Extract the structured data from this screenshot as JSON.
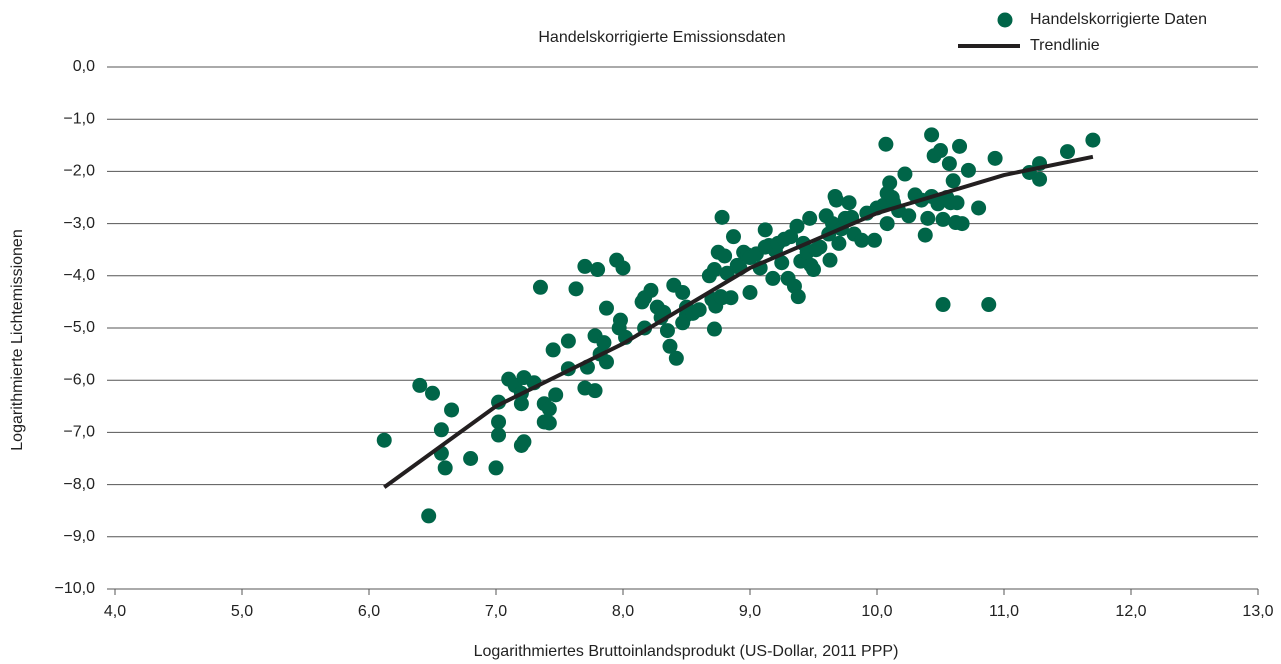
{
  "chart_data": {
    "type": "scatter",
    "title": "Handelskorrigierte Emissionsdaten",
    "xlabel": "Logarithmiertes Bruttoinlandsprodukt (US-Dollar, 2011 PPP)",
    "ylabel": "Logarithmierte Lichtemissionen",
    "xlim": [
      4,
      13
    ],
    "ylim": [
      -10,
      0
    ],
    "xticks": [
      {
        "value": 4,
        "label": "4,0"
      },
      {
        "value": 5,
        "label": "5,0"
      },
      {
        "value": 6,
        "label": "6,0"
      },
      {
        "value": 7,
        "label": "7,0"
      },
      {
        "value": 8,
        "label": "8,0"
      },
      {
        "value": 9,
        "label": "9,0"
      },
      {
        "value": 10,
        "label": "10,0"
      },
      {
        "value": 11,
        "label": "11,0"
      },
      {
        "value": 12,
        "label": "12,0"
      },
      {
        "value": 13,
        "label": "13,0"
      }
    ],
    "yticks": [
      {
        "value": 0,
        "label": "0,0"
      },
      {
        "value": -1,
        "label": "−1,0"
      },
      {
        "value": -2,
        "label": "−2,0"
      },
      {
        "value": -3,
        "label": "−3,0"
      },
      {
        "value": -4,
        "label": "−4,0"
      },
      {
        "value": -5,
        "label": "−5,0"
      },
      {
        "value": -6,
        "label": "−6,0"
      },
      {
        "value": -7,
        "label": "−7,0"
      },
      {
        "value": -8,
        "label": "−8,0"
      },
      {
        "value": -9,
        "label": "−9,0"
      },
      {
        "value": -10,
        "label": "−10,0"
      }
    ],
    "grid": "y",
    "legend": "upper right",
    "series": [
      {
        "name": "Handelskorrigierte Daten",
        "type": "scatter",
        "color": "#006548",
        "x": [
          6.12,
          6.4,
          6.5,
          6.47,
          6.57,
          6.57,
          6.6,
          6.65,
          6.8,
          7.0,
          7.02,
          7.02,
          7.02,
          7.1,
          7.15,
          7.2,
          7.2,
          7.2,
          7.22,
          7.22,
          7.3,
          7.35,
          7.38,
          7.38,
          7.42,
          7.42,
          7.45,
          7.47,
          7.57,
          7.57,
          7.63,
          7.7,
          7.7,
          7.72,
          7.78,
          7.78,
          7.8,
          7.82,
          7.85,
          7.87,
          7.87,
          7.95,
          7.97,
          7.98,
          8.0,
          8.02,
          8.15,
          8.17,
          8.17,
          8.22,
          8.27,
          8.3,
          8.32,
          8.35,
          8.37,
          8.4,
          8.42,
          8.47,
          8.47,
          8.5,
          8.5,
          8.55,
          8.6,
          8.68,
          8.7,
          8.72,
          8.72,
          8.73,
          8.75,
          8.77,
          8.78,
          8.78,
          8.8,
          8.82,
          8.85,
          8.87,
          8.9,
          8.92,
          8.95,
          8.98,
          9.0,
          9.0,
          9.05,
          9.08,
          9.12,
          9.12,
          9.15,
          9.18,
          9.2,
          9.22,
          9.25,
          9.27,
          9.3,
          9.32,
          9.35,
          9.37,
          9.38,
          9.4,
          9.42,
          9.45,
          9.47,
          9.48,
          9.5,
          9.52,
          9.55,
          9.6,
          9.62,
          9.63,
          9.65,
          9.67,
          9.68,
          9.7,
          9.72,
          9.75,
          9.78,
          9.8,
          9.82,
          9.88,
          9.92,
          9.98,
          10.0,
          10.05,
          10.07,
          10.08,
          10.08,
          10.1,
          10.12,
          10.13,
          10.17,
          10.22,
          10.25,
          10.3,
          10.35,
          10.38,
          10.4,
          10.43,
          10.43,
          10.45,
          10.48,
          10.5,
          10.52,
          10.52,
          10.55,
          10.57,
          10.58,
          10.6,
          10.62,
          10.63,
          10.65,
          10.67,
          10.72,
          10.8,
          10.88,
          10.93,
          11.2,
          11.28,
          11.28,
          11.5,
          11.7
        ],
        "values": [
          -7.15,
          -6.1,
          -6.25,
          -8.6,
          -6.95,
          -7.4,
          -7.68,
          -6.57,
          -7.5,
          -7.68,
          -6.8,
          -7.05,
          -6.42,
          -5.98,
          -6.1,
          -6.45,
          -6.25,
          -7.25,
          -7.18,
          -5.95,
          -6.05,
          -4.22,
          -6.45,
          -6.8,
          -6.82,
          -6.55,
          -5.42,
          -6.28,
          -5.25,
          -5.78,
          -4.25,
          -6.15,
          -3.82,
          -5.75,
          -6.2,
          -5.15,
          -3.88,
          -5.5,
          -5.28,
          -4.62,
          -5.65,
          -3.7,
          -5.0,
          -4.85,
          -3.85,
          -5.18,
          -4.5,
          -4.42,
          -5.0,
          -4.28,
          -4.6,
          -4.8,
          -4.7,
          -5.05,
          -5.35,
          -4.18,
          -5.58,
          -4.9,
          -4.32,
          -4.75,
          -4.6,
          -4.72,
          -4.65,
          -4.0,
          -4.45,
          -3.88,
          -5.02,
          -4.58,
          -3.55,
          -4.4,
          -2.88,
          -4.42,
          -3.62,
          -3.95,
          -4.42,
          -3.25,
          -3.8,
          -3.85,
          -3.55,
          -3.6,
          -4.32,
          -3.65,
          -3.58,
          -3.85,
          -3.12,
          -3.45,
          -3.42,
          -4.05,
          -3.52,
          -3.38,
          -3.75,
          -3.3,
          -4.05,
          -3.25,
          -4.2,
          -3.05,
          -4.4,
          -3.72,
          -3.38,
          -3.55,
          -2.9,
          -3.8,
          -3.88,
          -3.5,
          -3.45,
          -2.85,
          -3.2,
          -3.7,
          -3.0,
          -2.48,
          -2.55,
          -3.38,
          -3.1,
          -2.9,
          -2.6,
          -2.88,
          -3.2,
          -3.32,
          -2.8,
          -3.32,
          -2.7,
          -2.65,
          -1.48,
          -2.42,
          -3.0,
          -2.22,
          -2.5,
          -2.6,
          -2.75,
          -2.05,
          -2.85,
          -2.45,
          -2.55,
          -3.22,
          -2.9,
          -1.3,
          -2.48,
          -1.7,
          -2.62,
          -1.6,
          -4.55,
          -2.92,
          -2.5,
          -1.85,
          -2.6,
          -2.18,
          -2.98,
          -2.6,
          -1.52,
          -3.0,
          -1.98,
          -2.7,
          -4.55,
          -1.75,
          -2.02,
          -1.85,
          -2.15,
          -1.62,
          -1.4
        ]
      },
      {
        "name": "Trendlinie",
        "type": "line",
        "color": "#231f20",
        "x": [
          6.12,
          7,
          8,
          9,
          10,
          11,
          11.7
        ],
        "values": [
          -8.05,
          -6.5,
          -5.3,
          -3.85,
          -2.8,
          -2.07,
          -1.72
        ]
      }
    ]
  }
}
